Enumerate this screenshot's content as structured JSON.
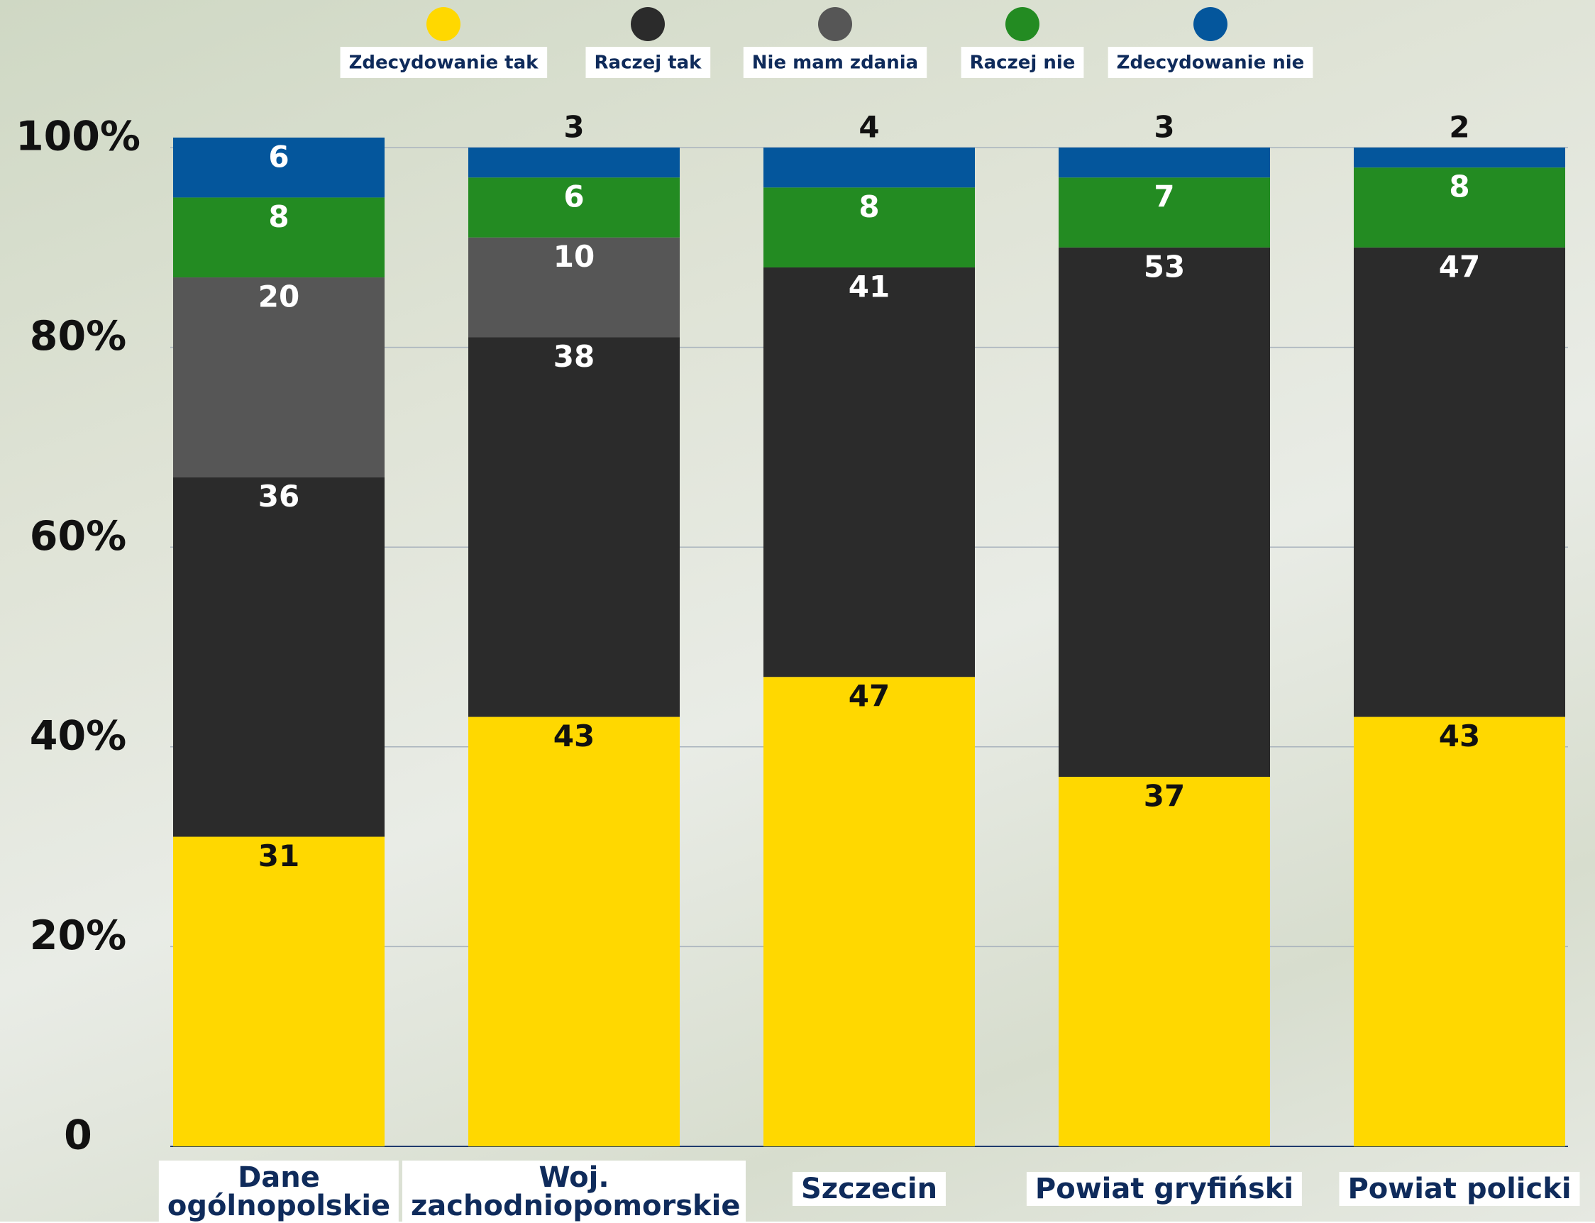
{
  "chart_data": {
    "type": "stacked_bar",
    "categories": [
      "Dane ogólnopolskie",
      "Woj. zachodniopomorskie",
      "Szczecin",
      "Powiat gryfiński",
      "Powiat policki"
    ],
    "series": [
      {
        "name": "Zdecydowanie tak",
        "color": "#ffd800",
        "values": [
          31,
          43,
          47,
          37,
          43
        ]
      },
      {
        "name": "Raczej tak",
        "color": "#2b2b2b",
        "values": [
          36,
          38,
          41,
          53,
          47
        ]
      },
      {
        "name": "Nie mam zdania",
        "color": "#565656",
        "values": [
          20,
          10,
          null,
          null,
          null
        ]
      },
      {
        "name": "Raczej nie",
        "color": "#238b22",
        "values": [
          8,
          6,
          8,
          7,
          8
        ]
      },
      {
        "name": "Zdecydowanie nie",
        "color": "#04569c",
        "values": [
          6,
          3,
          4,
          3,
          2
        ]
      }
    ],
    "ylim": [
      0,
      100
    ],
    "yticks": [
      0,
      {
        "value": 20,
        "label": "20%"
      },
      {
        "value": 40,
        "label": "40%"
      },
      {
        "value": 60,
        "label": "60%"
      },
      {
        "value": 80,
        "label": "80%"
      },
      {
        "value": 100,
        "label": "100%"
      }
    ],
    "grid": true
  }
}
